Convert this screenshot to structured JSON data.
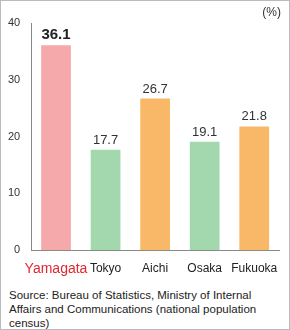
{
  "chart_data": {
    "type": "bar",
    "categories": [
      "Yamagata",
      "Tokyo",
      "Aichi",
      "Osaka",
      "Fukuoka"
    ],
    "values": [
      36.1,
      17.7,
      26.7,
      19.1,
      21.8
    ],
    "colors": [
      "#f5a9ab",
      "#a3d8ae",
      "#f8b868",
      "#a3d8ae",
      "#f8b868"
    ],
    "ylim": [
      0,
      40
    ],
    "yticks": [
      0,
      10,
      20,
      30,
      40
    ],
    "ylabel": "(%)",
    "source": "Source: Bureau of Statistics, Ministry of Internal Affairs and Communications (national population census)",
    "data_labels": true,
    "grid": false
  }
}
